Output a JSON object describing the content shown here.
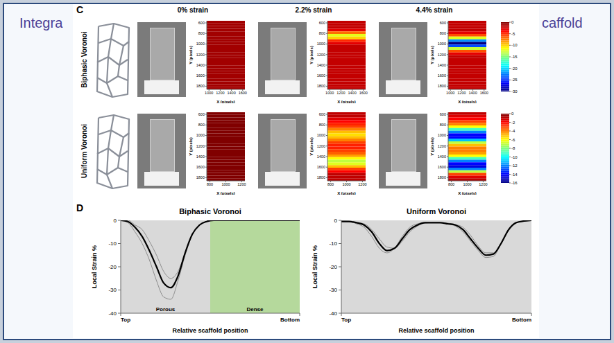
{
  "slide_title": [
    "Integra",
    "caffold"
  ],
  "panel_c": {
    "label": "C",
    "columns": [
      "0% strain",
      "2.2% strain",
      "4.4% strain"
    ],
    "cell_y_edges": [
      560,
      610,
      660,
      710,
      760,
      810,
      860,
      910,
      960,
      1010,
      1060,
      1110,
      1160,
      1210,
      1260,
      1310,
      1360,
      1410,
      1460,
      1510,
      1560,
      1610,
      1660,
      1710,
      1760,
      1810,
      1860
    ],
    "rows": [
      {
        "label": "Biphasic Voronoi",
        "colorbar": {
          "range": [
            -30,
            0
          ],
          "ticks": [
            0,
            -5,
            -10,
            -15,
            -20,
            -25,
            -30
          ]
        },
        "heatmaps": [
          {
            "type": "heatmap",
            "xlabel": "X (pixels)",
            "ylabel": "Y (pixels)",
            "xlim": [
              960,
              1640
            ],
            "xticks": [
              1000,
              1200,
              1400,
              1600
            ],
            "ylim": [
              560,
              1860
            ],
            "yticks": [
              600,
              800,
              1000,
              1200,
              1400,
              1600,
              1800
            ],
            "values": [
              -1,
              -1,
              -1,
              -1,
              -1,
              -1,
              -1,
              -1,
              -1,
              -1,
              -1,
              -1,
              -1,
              -1,
              -1,
              -1,
              -1,
              -1,
              -1,
              -1,
              -1,
              -1,
              -1,
              -1,
              -1,
              -1
            ]
          },
          {
            "type": "heatmap",
            "xlabel": "X (pixels)",
            "ylabel": "Y (pixels)",
            "xlim": [
              960,
              1640
            ],
            "xticks": [
              1000,
              1200,
              1400,
              1600
            ],
            "ylim": [
              560,
              1860
            ],
            "yticks": [
              600,
              800,
              1000,
              1200,
              1400,
              1600,
              1800
            ],
            "values": [
              -2,
              -2,
              -2,
              -3,
              -7,
              -12,
              -10,
              -5,
              -3,
              -2,
              -2,
              -2,
              -2,
              -2,
              -2,
              -2,
              -2,
              -2,
              -2,
              -2,
              -2,
              -2,
              -2,
              -2,
              -2,
              -2
            ]
          },
          {
            "type": "heatmap",
            "xlabel": "X (pixels)",
            "ylabel": "Y (pixels)",
            "xlim": [
              960,
              1640
            ],
            "xticks": [
              1000,
              1200,
              1400,
              1600
            ],
            "ylim": [
              560,
              1860
            ],
            "yticks": [
              600,
              800,
              1000,
              1200,
              1400,
              1600,
              1800
            ],
            "values": [
              -2,
              -2,
              -2,
              -2,
              -3,
              -6,
              -12,
              -22,
              -30,
              -24,
              -13,
              -6,
              -3,
              -2,
              -2,
              -2,
              -2,
              -2,
              -2,
              -2,
              -2,
              -2,
              -2,
              -2,
              -2,
              -2
            ]
          }
        ]
      },
      {
        "label": "Uniform Voronoi",
        "colorbar": {
          "range": [
            -16,
            0
          ],
          "ticks": [
            0,
            -2,
            -4,
            -6,
            -8,
            -10,
            -12,
            -14,
            -16
          ]
        },
        "heatmaps": [
          {
            "type": "heatmap",
            "xlabel": "X (pixels)",
            "ylabel": "Y (pixels)",
            "xlim": [
              760,
              1240
            ],
            "xticks": [
              800,
              1000,
              1200
            ],
            "ylim": [
              560,
              1860
            ],
            "yticks": [
              600,
              800,
              1000,
              1200,
              1400,
              1600,
              1800
            ],
            "values": [
              0,
              0,
              0,
              0,
              0,
              0,
              0,
              0,
              0,
              0,
              0,
              0,
              0,
              0,
              0,
              0,
              0,
              0,
              0,
              0,
              0,
              0,
              0,
              0,
              0,
              0
            ]
          },
          {
            "type": "heatmap",
            "xlabel": "X (pixels)",
            "ylabel": "Y (pixels)",
            "xlim": [
              760,
              1240
            ],
            "xticks": [
              800,
              1000,
              1200
            ],
            "ylim": [
              560,
              1860
            ],
            "yticks": [
              600,
              800,
              1000,
              1200,
              1400,
              1600,
              1800
            ],
            "values": [
              -1,
              -1,
              -1.5,
              -2,
              -2.5,
              -3,
              -4,
              -5,
              -5.5,
              -5,
              -4,
              -3,
              -2.5,
              -2.5,
              -3,
              -3.5,
              -4.5,
              -6,
              -7,
              -6.5,
              -5,
              -3,
              -2,
              -1,
              -1,
              -1
            ]
          },
          {
            "type": "heatmap",
            "xlabel": "X (pixels)",
            "ylabel": "Y (pixels)",
            "xlim": [
              760,
              1240
            ],
            "xticks": [
              800,
              1000,
              1200
            ],
            "ylim": [
              560,
              1860
            ],
            "yticks": [
              600,
              800,
              1000,
              1200,
              1400,
              1600,
              1800
            ],
            "values": [
              -1,
              -1.5,
              -2,
              -3,
              -4,
              -6,
              -9,
              -12,
              -14,
              -14,
              -11,
              -7,
              -5,
              -4,
              -4,
              -4.5,
              -6,
              -9,
              -12,
              -14,
              -14.5,
              -12,
              -7,
              -3,
              -1.5,
              -1
            ]
          }
        ]
      }
    ]
  },
  "panel_d": {
    "label": "D"
  },
  "chart_data": [
    {
      "type": "line",
      "title": "Biphasic Voronoi",
      "xlabel": "Relative scaffold position",
      "ylabel": "Local Strain %",
      "x": [
        0,
        0.04,
        0.08,
        0.12,
        0.16,
        0.2,
        0.24,
        0.28,
        0.32,
        0.36,
        0.4,
        0.44,
        0.48,
        0.52,
        0.56,
        0.6,
        0.64,
        0.68,
        0.72,
        0.76,
        0.8,
        0.84,
        0.88,
        0.92,
        0.96,
        1
      ],
      "xlim": [
        0,
        1
      ],
      "xticks": [
        {
          "value": 0,
          "label": "Top"
        },
        {
          "value": 1,
          "label": "Bottom"
        }
      ],
      "ylim": [
        -40,
        0
      ],
      "yticks": [
        0,
        -10,
        -20,
        -30,
        -40
      ],
      "regions": [
        {
          "label": "Porous",
          "from": 0,
          "to": 0.5,
          "color": "#d9d9d9"
        },
        {
          "label": "Dense",
          "from": 0.5,
          "to": 1,
          "color": "#b5d99c"
        }
      ],
      "series": [
        {
          "color": "#8c8c8c",
          "values": [
            0,
            -1,
            -5,
            -10,
            -17,
            -26,
            -33,
            -34,
            -26,
            -15,
            -6,
            -2,
            -0.5,
            0,
            0,
            0,
            0,
            0,
            0,
            0,
            0,
            0,
            0,
            0,
            0,
            0
          ]
        },
        {
          "color": "#8c8c8c",
          "values": [
            0,
            0,
            -2,
            -4,
            -9,
            -15,
            -22,
            -25,
            -22,
            -14,
            -6,
            -2,
            -0.5,
            0,
            0,
            0,
            0,
            0,
            0,
            0,
            0,
            0,
            0,
            0,
            0,
            0
          ]
        },
        {
          "color": "#000000",
          "values": [
            0,
            -0.5,
            -3,
            -7,
            -13,
            -20,
            -27,
            -29,
            -24,
            -14,
            -6,
            -2,
            -0.5,
            0,
            0,
            0,
            0,
            0,
            0,
            0,
            0,
            0,
            0,
            0,
            0,
            0
          ]
        }
      ]
    },
    {
      "type": "line",
      "title": "Uniform Voronoi",
      "xlabel": "Relative scaffold position",
      "ylabel": "Local Strain %",
      "x": [
        0,
        0.04,
        0.08,
        0.12,
        0.16,
        0.2,
        0.24,
        0.28,
        0.32,
        0.36,
        0.4,
        0.44,
        0.48,
        0.52,
        0.56,
        0.6,
        0.64,
        0.68,
        0.72,
        0.76,
        0.8,
        0.84,
        0.88,
        0.92,
        0.96,
        1
      ],
      "xlim": [
        0,
        1
      ],
      "xticks": [
        {
          "value": 0,
          "label": "Top"
        },
        {
          "value": 1,
          "label": "Bottom"
        }
      ],
      "ylim": [
        -40,
        0
      ],
      "yticks": [
        0,
        -10,
        -20,
        -30,
        -40
      ],
      "regions": [
        {
          "from": 0,
          "to": 1,
          "color": "#d9d9d9"
        }
      ],
      "series": [
        {
          "color": "#8c8c8c",
          "values": [
            -0.3,
            -0.5,
            -1.5,
            -3,
            -7,
            -12,
            -14,
            -12,
            -7,
            -3,
            -1.5,
            -1,
            -1,
            -1,
            -1.5,
            -2.5,
            -5,
            -9,
            -13,
            -16,
            -15.5,
            -10,
            -4,
            -1,
            -0.3,
            0
          ]
        },
        {
          "color": "#8c8c8c",
          "values": [
            -0.5,
            -0.7,
            -1,
            -1.5,
            -4,
            -8,
            -11.5,
            -12,
            -9,
            -5,
            -2.5,
            -1.2,
            -1,
            -1,
            -1.2,
            -1.8,
            -3,
            -6.5,
            -11,
            -14,
            -14,
            -10,
            -4.5,
            -1.2,
            -0.3,
            0
          ]
        },
        {
          "color": "#000000",
          "values": [
            -0.5,
            -0.5,
            -1,
            -2,
            -5,
            -10,
            -13,
            -12,
            -8,
            -4,
            -2,
            -1,
            -1,
            -1,
            -1.5,
            -2,
            -4,
            -8,
            -12,
            -15,
            -14.5,
            -10,
            -4,
            -1,
            -0.3,
            0
          ]
        }
      ]
    }
  ]
}
